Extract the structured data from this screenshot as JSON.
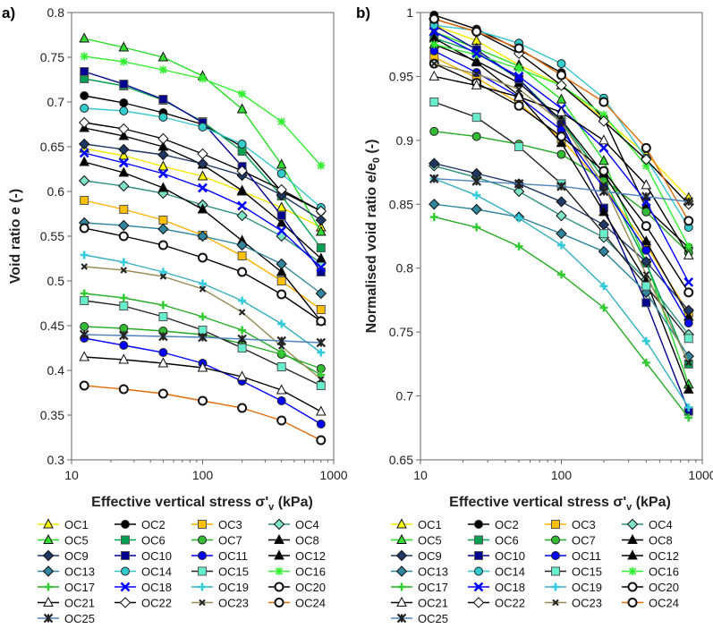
{
  "panels": {
    "a": {
      "label": "a)",
      "ytitle": "Void ratio e (-)",
      "yticks": [
        "0.3",
        "0.35",
        "0.4",
        "0.45",
        "0.5",
        "0.55",
        "0.6",
        "0.65",
        "0.7",
        "0.75",
        "0.8"
      ]
    },
    "b": {
      "label": "b)",
      "ytitle_main": "Normalised void ratio e/e",
      "ytitle_sub": "0",
      "ytitle_end": " (-)",
      "yticks": [
        "0.65",
        "0.7",
        "0.75",
        "0.8",
        "0.85",
        "0.9",
        "0.95",
        "1"
      ]
    }
  },
  "xtitle": {
    "main": "Effective vertical stress σ'",
    "sub": "v",
    "end": " (kPa)"
  },
  "xticks": [
    "10",
    "100",
    "1000"
  ],
  "chart_data": {
    "type": "line",
    "x": [
      12.5,
      25,
      50,
      100,
      200,
      400,
      800
    ],
    "xscale": "log",
    "xlim": [
      10,
      1000
    ],
    "panels": [
      {
        "id": "a",
        "ylabel": "Void ratio e (-)",
        "ylim": [
          0.3,
          0.8
        ]
      },
      {
        "id": "b",
        "ylabel": "Normalised void ratio e/e0 (-)",
        "ylim": [
          0.65,
          1.0
        ]
      }
    ],
    "legend_placement": "below",
    "series": [
      {
        "name": "OC1",
        "color": "#F5E600",
        "fill": "#FFFF00",
        "marker": "triangle",
        "a": [
          0.648,
          0.64,
          0.628,
          0.617,
          0.6,
          0.582,
          0.56
        ],
        "b": [
          0.99,
          0.978,
          0.959,
          0.943,
          0.917,
          0.889,
          0.855
        ]
      },
      {
        "name": "OC2",
        "color": "#000000",
        "fill": "#000000",
        "marker": "circle",
        "a": [
          0.707,
          0.699,
          0.688,
          0.675,
          0.65,
          0.6,
          0.578
        ],
        "b": [
          0.998,
          0.987,
          0.971,
          0.953,
          0.917,
          0.847,
          0.816
        ]
      },
      {
        "name": "OC3",
        "color": "#FFB000",
        "fill": "#FFC000",
        "marker": "square",
        "a": [
          0.59,
          0.58,
          0.568,
          0.551,
          0.528,
          0.5,
          0.468
        ],
        "b": [
          0.965,
          0.949,
          0.929,
          0.901,
          0.864,
          0.818,
          0.765
        ]
      },
      {
        "name": "OC4",
        "color": "#2F8F7F",
        "fill": "#7FE3C8",
        "marker": "diamond",
        "a": [
          0.612,
          0.606,
          0.598,
          0.585,
          0.573,
          0.55,
          0.52
        ],
        "b": [
          0.88,
          0.871,
          0.86,
          0.841,
          0.824,
          0.791,
          0.748
        ]
      },
      {
        "name": "OC5",
        "color": "#22DD22",
        "fill": "#33DD33",
        "marker": "triangle",
        "a": [
          0.771,
          0.761,
          0.75,
          0.729,
          0.692,
          0.63,
          0.555
        ],
        "b": [
          0.985,
          0.972,
          0.958,
          0.932,
          0.884,
          0.805,
          0.709
        ]
      },
      {
        "name": "OC6",
        "color": "#00A050",
        "fill": "#00A050",
        "marker": "square",
        "a": [
          0.726,
          0.718,
          0.702,
          0.678,
          0.645,
          0.595,
          0.537
        ],
        "b": [
          0.98,
          0.969,
          0.948,
          0.915,
          0.87,
          0.804,
          0.725
        ]
      },
      {
        "name": "OC7",
        "color": "#22AA22",
        "fill": "#33BB33",
        "marker": "circle",
        "a": [
          0.449,
          0.447,
          0.444,
          0.44,
          0.43,
          0.418,
          0.402
        ],
        "b": [
          0.907,
          0.903,
          0.897,
          0.889,
          0.869,
          0.844,
          0.812
        ]
      },
      {
        "name": "OC8",
        "color": "#000000",
        "fill": "#000000",
        "marker": "triangle",
        "a": [
          0.671,
          0.662,
          0.65,
          0.63,
          0.601,
          0.565,
          0.525
        ],
        "b": [
          0.975,
          0.962,
          0.945,
          0.916,
          0.874,
          0.821,
          0.762
        ]
      },
      {
        "name": "OC9",
        "color": "#1F3864",
        "fill": "#1F3864",
        "marker": "diamond",
        "a": [
          0.653,
          0.647,
          0.641,
          0.631,
          0.618,
          0.596,
          0.568
        ],
        "b": [
          0.882,
          0.874,
          0.866,
          0.852,
          0.834,
          0.805,
          0.767
        ]
      },
      {
        "name": "OC10",
        "color": "#000090",
        "fill": "#000090",
        "marker": "square",
        "a": [
          0.734,
          0.72,
          0.703,
          0.677,
          0.628,
          0.573,
          0.51
        ],
        "b": [
          0.99,
          0.971,
          0.948,
          0.913,
          0.847,
          0.773,
          0.688
        ]
      },
      {
        "name": "OC11",
        "color": "#0000FF",
        "fill": "#0000FF",
        "marker": "circle",
        "a": [
          0.436,
          0.428,
          0.42,
          0.408,
          0.388,
          0.366,
          0.34
        ],
        "b": [
          0.97,
          0.953,
          0.934,
          0.908,
          0.863,
          0.814,
          0.757
        ]
      },
      {
        "name": "OC12",
        "color": "#000000",
        "fill": "#000000",
        "marker": "triangle",
        "a": [
          0.633,
          0.621,
          0.604,
          0.58,
          0.545,
          0.51,
          0.455
        ],
        "b": [
          0.98,
          0.961,
          0.935,
          0.898,
          0.844,
          0.79,
          0.705
        ]
      },
      {
        "name": "OC13",
        "color": "#31859C",
        "fill": "#31859C",
        "marker": "diamond",
        "a": [
          0.565,
          0.562,
          0.558,
          0.55,
          0.54,
          0.519,
          0.486
        ],
        "b": [
          0.85,
          0.846,
          0.84,
          0.827,
          0.813,
          0.781,
          0.731
        ]
      },
      {
        "name": "OC14",
        "color": "#33C4CC",
        "fill": "#33CCCC",
        "marker": "circle",
        "a": [
          0.693,
          0.69,
          0.683,
          0.672,
          0.653,
          0.62,
          0.582
        ],
        "b": [
          0.99,
          0.986,
          0.976,
          0.96,
          0.933,
          0.886,
          0.832
        ]
      },
      {
        "name": "OC15",
        "color": "#222222",
        "fill": "#66EECC",
        "marker": "square",
        "a": [
          0.478,
          0.472,
          0.46,
          0.445,
          0.425,
          0.404,
          0.383
        ],
        "b": [
          0.93,
          0.918,
          0.895,
          0.866,
          0.827,
          0.786,
          0.745
        ]
      },
      {
        "name": "OC16",
        "color": "#33EE33",
        "fill": "#33EE33",
        "marker": "asterisk",
        "a": [
          0.751,
          0.745,
          0.736,
          0.726,
          0.709,
          0.678,
          0.629
        ],
        "b": [
          0.975,
          0.967,
          0.956,
          0.943,
          0.92,
          0.88,
          0.817
        ]
      },
      {
        "name": "OC17",
        "color": "#22AA22",
        "fill": "#33CC33",
        "marker": "plus",
        "a": [
          0.486,
          0.481,
          0.473,
          0.46,
          0.445,
          0.42,
          0.395
        ],
        "b": [
          0.84,
          0.832,
          0.817,
          0.795,
          0.769,
          0.726,
          0.683
        ]
      },
      {
        "name": "OC18",
        "color": "#0000FF",
        "fill": "#0000FF",
        "marker": "x",
        "a": [
          0.643,
          0.632,
          0.62,
          0.604,
          0.584,
          0.556,
          0.515
        ],
        "b": [
          0.985,
          0.968,
          0.95,
          0.925,
          0.894,
          0.852,
          0.789
        ]
      },
      {
        "name": "OC19",
        "color": "#33B0C0",
        "fill": "#33CCDD",
        "marker": "plus",
        "a": [
          0.529,
          0.521,
          0.51,
          0.497,
          0.478,
          0.452,
          0.42
        ],
        "b": [
          0.87,
          0.857,
          0.839,
          0.818,
          0.786,
          0.743,
          0.691
        ]
      },
      {
        "name": "OC20",
        "color": "#000000",
        "fill": "#FFFFFF",
        "marker": "circle",
        "a": [
          0.559,
          0.55,
          0.54,
          0.526,
          0.51,
          0.485,
          0.455
        ],
        "b": [
          0.96,
          0.945,
          0.927,
          0.903,
          0.876,
          0.833,
          0.781
        ]
      },
      {
        "name": "OC21",
        "color": "#000000",
        "fill": "#FFFFFF",
        "marker": "triangle",
        "a": [
          0.415,
          0.412,
          0.408,
          0.403,
          0.393,
          0.378,
          0.354
        ],
        "b": [
          0.95,
          0.943,
          0.934,
          0.922,
          0.9,
          0.865,
          0.81
        ]
      },
      {
        "name": "OC22",
        "color": "#000000",
        "fill": "#FFFFFF",
        "marker": "diamond",
        "a": [
          0.677,
          0.67,
          0.659,
          0.642,
          0.623,
          0.602,
          0.578
        ],
        "b": [
          0.995,
          0.985,
          0.968,
          0.943,
          0.915,
          0.885,
          0.85
        ]
      },
      {
        "name": "OC23",
        "color": "#948A54",
        "fill": "#222222",
        "marker": "smallx",
        "a": [
          0.516,
          0.512,
          0.505,
          0.491,
          0.465,
          0.427,
          0.39
        ],
        "b": [
          0.96,
          0.952,
          0.94,
          0.914,
          0.865,
          0.795,
          0.726
        ]
      },
      {
        "name": "OC24",
        "color": "#E36C09",
        "fill": "#FFFFFF",
        "marker": "circle",
        "a": [
          0.383,
          0.379,
          0.374,
          0.366,
          0.358,
          0.344,
          0.322
        ],
        "b": [
          0.995,
          0.985,
          0.972,
          0.951,
          0.93,
          0.894,
          0.837
        ]
      },
      {
        "name": "OC25",
        "color": "#4F81BD",
        "fill": "#222222",
        "marker": "star",
        "a": [
          0.44,
          0.439,
          0.438,
          0.437,
          0.435,
          0.433,
          0.431
        ],
        "b": [
          0.87,
          0.868,
          0.866,
          0.864,
          0.86,
          0.856,
          0.852
        ]
      }
    ]
  }
}
